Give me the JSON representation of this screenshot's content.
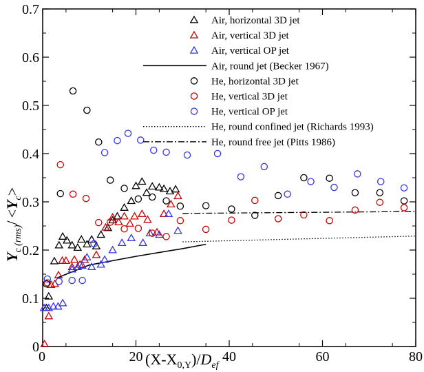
{
  "chart_data": {
    "type": "scatter",
    "title": "",
    "xlabel": "(X-X0,Y)/Def",
    "ylabel": "Yc(rms)/<Yc>",
    "xlim": [
      0,
      80
    ],
    "ylim": [
      0,
      0.7
    ],
    "xticks": [
      "0",
      "20",
      "40",
      "60",
      "80"
    ],
    "yticks": [
      "0",
      "0.1",
      "0.2",
      "0.3",
      "0.4",
      "0.5",
      "0.6",
      "0.7"
    ],
    "legend_position": "top-right",
    "series": [
      {
        "name": "Air, horizontal 3D jet",
        "marker": "triangle",
        "color": "#000000",
        "points": [
          [
            0.8,
            0.08
          ],
          [
            1.3,
            0.104
          ],
          [
            2.5,
            0.177
          ],
          [
            3.5,
            0.21
          ],
          [
            4.3,
            0.228
          ],
          [
            5.2,
            0.22
          ],
          [
            6.3,
            0.21
          ],
          [
            7.5,
            0.205
          ],
          [
            8.3,
            0.222
          ],
          [
            9.5,
            0.212
          ],
          [
            10.5,
            0.222
          ],
          [
            11.5,
            0.208
          ],
          [
            12.5,
            0.232
          ],
          [
            14,
            0.246
          ],
          [
            15,
            0.262
          ],
          [
            16,
            0.27
          ],
          [
            17.5,
            0.288
          ],
          [
            19,
            0.302
          ],
          [
            20,
            0.333
          ],
          [
            21.3,
            0.342
          ],
          [
            22.3,
            0.319
          ],
          [
            23.5,
            0.332
          ],
          [
            25,
            0.33
          ],
          [
            26,
            0.327
          ],
          [
            27.3,
            0.322
          ],
          [
            28.5,
            0.326
          ]
        ]
      },
      {
        "name": "Air, vertical 3D jet",
        "marker": "triangle",
        "color": "#cc0000",
        "points": [
          [
            0.4,
            0.005
          ],
          [
            1.3,
            0.063
          ],
          [
            1.8,
            0.128
          ],
          [
            2.6,
            0.13
          ],
          [
            3.4,
            0.148
          ],
          [
            4.2,
            0.178
          ],
          [
            5,
            0.178
          ],
          [
            6.3,
            0.165
          ],
          [
            6.8,
            0.18
          ],
          [
            8,
            0.17
          ],
          [
            9,
            0.18
          ],
          [
            11.5,
            0.19
          ],
          [
            13.5,
            0.247
          ],
          [
            15,
            0.268
          ],
          [
            16.3,
            0.258
          ],
          [
            17.5,
            0.27
          ],
          [
            18.7,
            0.255
          ],
          [
            19.7,
            0.27
          ],
          [
            21.3,
            0.275
          ],
          [
            22.5,
            0.263
          ],
          [
            24.5,
            0.237
          ],
          [
            26,
            0.275
          ],
          [
            27.5,
            0.295
          ],
          [
            29,
            0.312
          ]
        ]
      },
      {
        "name": "Air, vertical OP jet",
        "marker": "triangle",
        "color": "#3333ee",
        "points": [
          [
            0.3,
            0.08
          ],
          [
            1.3,
            0.08
          ],
          [
            2.3,
            0.083
          ],
          [
            3.3,
            0.083
          ],
          [
            4.3,
            0.09
          ],
          [
            6.3,
            0.16
          ],
          [
            7.5,
            0.165
          ],
          [
            8.5,
            0.168
          ],
          [
            9.5,
            0.185
          ],
          [
            10.5,
            0.165
          ],
          [
            12.5,
            0.17
          ],
          [
            13.3,
            0.18
          ],
          [
            15,
            0.2
          ],
          [
            17,
            0.215
          ],
          [
            19,
            0.225
          ],
          [
            21.5,
            0.215
          ],
          [
            23,
            0.235
          ],
          [
            25,
            0.232
          ],
          [
            27,
            0.275
          ],
          [
            29,
            0.24
          ]
        ]
      },
      {
        "name": "Air, round jet (Becker 1967)",
        "line": "solid",
        "color": "#000000",
        "points": [
          [
            3,
            0.142
          ],
          [
            10,
            0.169
          ],
          [
            20,
            0.187
          ],
          [
            30,
            0.203
          ],
          [
            35,
            0.212
          ]
        ]
      },
      {
        "name": "He, horizontal 3D jet",
        "marker": "circle",
        "color": "#000000",
        "points": [
          [
            0.8,
            0.13
          ],
          [
            3.8,
            0.317
          ],
          [
            6.5,
            0.53
          ],
          [
            9.5,
            0.49
          ],
          [
            12,
            0.424
          ],
          [
            14.5,
            0.345
          ],
          [
            17.5,
            0.328
          ],
          [
            20.5,
            0.306
          ],
          [
            23.5,
            0.31
          ],
          [
            26.5,
            0.302
          ],
          [
            29.5,
            0.291
          ],
          [
            35,
            0.292
          ],
          [
            40.5,
            0.285
          ],
          [
            45.5,
            0.272
          ],
          [
            50.5,
            0.313
          ],
          [
            56,
            0.35
          ],
          [
            61.5,
            0.349
          ],
          [
            67,
            0.319
          ],
          [
            72.3,
            0.319
          ],
          [
            77.5,
            0.302
          ]
        ]
      },
      {
        "name": "He, vertical 3D jet",
        "marker": "circle",
        "color": "#cc0000",
        "points": [
          [
            1,
            0.132
          ],
          [
            3.8,
            0.377
          ],
          [
            6.5,
            0.316
          ],
          [
            9.3,
            0.307
          ],
          [
            12,
            0.257
          ],
          [
            14.5,
            0.258
          ],
          [
            17.5,
            0.244
          ],
          [
            20.5,
            0.245
          ],
          [
            23.5,
            0.235
          ],
          [
            26.5,
            0.228
          ],
          [
            29.5,
            0.261
          ],
          [
            35,
            0.243
          ],
          [
            40.5,
            0.262
          ],
          [
            45.5,
            0.303
          ],
          [
            50.5,
            0.265
          ],
          [
            56,
            0.273
          ],
          [
            61.5,
            0.261
          ],
          [
            67,
            0.283
          ],
          [
            72.3,
            0.299
          ],
          [
            77.5,
            0.288
          ]
        ]
      },
      {
        "name": "He, vertical OP jet",
        "marker": "circle",
        "color": "#3333ee",
        "points": [
          [
            1,
            0.14
          ],
          [
            3.5,
            0.135
          ],
          [
            6.3,
            0.137
          ],
          [
            8.5,
            0.137
          ],
          [
            11,
            0.213
          ],
          [
            13.3,
            0.402
          ],
          [
            16,
            0.427
          ],
          [
            18.3,
            0.442
          ],
          [
            21,
            0.428
          ],
          [
            23.8,
            0.407
          ],
          [
            26.5,
            0.403
          ],
          [
            31,
            0.397
          ],
          [
            37.5,
            0.4
          ],
          [
            42.5,
            0.352
          ],
          [
            47.5,
            0.373
          ],
          [
            52.5,
            0.316
          ],
          [
            57.5,
            0.342
          ],
          [
            62.5,
            0.33
          ],
          [
            67.5,
            0.358
          ],
          [
            72.5,
            0.342
          ],
          [
            77.5,
            0.329
          ]
        ]
      },
      {
        "name": "He, round confined jet (Richards 1993)",
        "line": "dotted",
        "color": "#000000",
        "points": [
          [
            30,
            0.217
          ],
          [
            80,
            0.229
          ]
        ]
      },
      {
        "name": "He, round free jet (Pitts 1986)",
        "line": "dashdot",
        "color": "#000000",
        "points": [
          [
            30,
            0.276
          ],
          [
            80,
            0.28
          ]
        ]
      }
    ]
  }
}
